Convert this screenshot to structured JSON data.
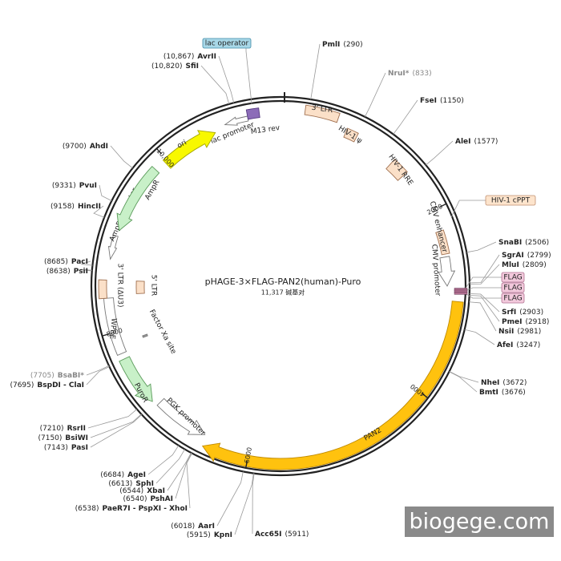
{
  "title": "pHAGE-3×FLAG-PAN2(human)-Puro",
  "length_label": "11,317 碱基对",
  "sites": [
    {
      "name": "PmlI",
      "position": "(290)"
    },
    {
      "name": "NruI*",
      "position": "(833)"
    },
    {
      "name": "FseI",
      "position": "(1150)"
    },
    {
      "name": "AleI",
      "position": "(1577)"
    },
    {
      "name": "SnaBI",
      "position": "(2506)"
    },
    {
      "name": "SgrAI",
      "position": "(2799)"
    },
    {
      "name": "MluI",
      "position": "(2809)"
    },
    {
      "name": "SrfI",
      "position": "(2903)"
    },
    {
      "name": "PmeI",
      "position": "(2918)"
    },
    {
      "name": "NsiI",
      "position": "(2981)"
    },
    {
      "name": "AfeI",
      "position": "(3247)"
    },
    {
      "name": "NheI",
      "position": "(3672)"
    },
    {
      "name": "BmtI",
      "position": "(3676)"
    },
    {
      "name": "Acc65I",
      "position": "(5911)"
    },
    {
      "name": "KpnI",
      "position": "(5915)"
    },
    {
      "name": "AarI",
      "position": "(6018)"
    },
    {
      "name": "PaeR7I - PspXI - XhoI",
      "position": "(6538)"
    },
    {
      "name": "PshAI",
      "position": "(6540)"
    },
    {
      "name": "XbaI",
      "position": "(6544)"
    },
    {
      "name": "SphI",
      "position": "(6613)"
    },
    {
      "name": "AgeI",
      "position": "(6684)"
    },
    {
      "name": "PasI",
      "position": "(7143)"
    },
    {
      "name": "BsiWI",
      "position": "(7150)"
    },
    {
      "name": "RsrII",
      "position": "(7210)"
    },
    {
      "name": "BspDI - ClaI",
      "position": "(7695)"
    },
    {
      "name": "BsaBI*",
      "position": "(7705)"
    },
    {
      "name": "PsiI",
      "position": "(8638)"
    },
    {
      "name": "PacI",
      "position": "(8685)"
    },
    {
      "name": "HincII",
      "position": "(9158)"
    },
    {
      "name": "PvuI",
      "position": "(9331)"
    },
    {
      "name": "AhdI",
      "position": "(9700)"
    },
    {
      "name": "SfiI",
      "position": "(10,820)"
    },
    {
      "name": "AvrII",
      "position": "(10,867)"
    }
  ],
  "features": [
    "lac promoter",
    "M13 rev",
    "3' LTR",
    "HIV-1 ψ",
    "HIV-1 RRE",
    "CMV enhancer",
    "CMV promoter",
    "PAN2",
    "PGK promoter",
    "PuroR",
    "WPRE",
    "3' LTR (ΔU3)",
    "5' LTR",
    "Factor Xa site",
    "AmpR promoter",
    "AmpR",
    "ori"
  ],
  "callouts": [
    "lac operator",
    "HIV-1 cPPT",
    "FLAG",
    "FLAG",
    "FLAG"
  ],
  "ticks": [
    "2000",
    "4000",
    "6000",
    "8000",
    "10,000"
  ],
  "watermark": "biogege.com"
}
